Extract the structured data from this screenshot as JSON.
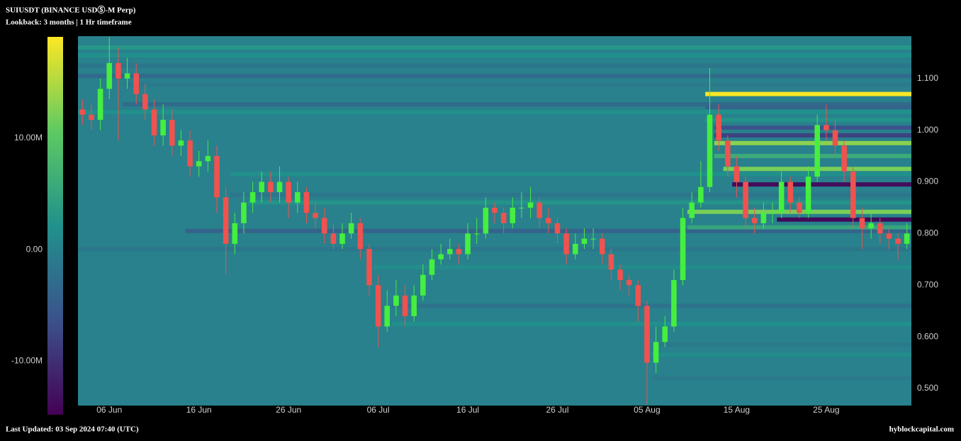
{
  "chart_data": {
    "type": "candlestick-heatmap",
    "title": "SUIUSDT (BINANCE USDⓈ-M Perp)",
    "subtitle": "Lookback: 3 months | 1 Hr timeframe",
    "footer": "Last Updated: 03 Sep 2024 07:40 (UTC)",
    "source": "hyblockcapital.com",
    "x": [
      "03 Jun",
      "04 Jun",
      "05 Jun",
      "06 Jun",
      "07 Jun",
      "08 Jun",
      "09 Jun",
      "10 Jun",
      "11 Jun",
      "12 Jun",
      "13 Jun",
      "14 Jun",
      "15 Jun",
      "16 Jun",
      "17 Jun",
      "18 Jun",
      "19 Jun",
      "20 Jun",
      "21 Jun",
      "22 Jun",
      "23 Jun",
      "24 Jun",
      "25 Jun",
      "26 Jun",
      "27 Jun",
      "28 Jun",
      "29 Jun",
      "30 Jun",
      "01 Jul",
      "02 Jul",
      "03 Jul",
      "04 Jul",
      "05 Jul",
      "06 Jul",
      "07 Jul",
      "08 Jul",
      "09 Jul",
      "10 Jul",
      "11 Jul",
      "12 Jul",
      "13 Jul",
      "14 Jul",
      "15 Jul",
      "16 Jul",
      "17 Jul",
      "18 Jul",
      "19 Jul",
      "20 Jul",
      "21 Jul",
      "22 Jul",
      "23 Jul",
      "24 Jul",
      "25 Jul",
      "26 Jul",
      "27 Jul",
      "28 Jul",
      "29 Jul",
      "30 Jul",
      "31 Jul",
      "01 Aug",
      "02 Aug",
      "03 Aug",
      "04 Aug",
      "05 Aug",
      "06 Aug",
      "07 Aug",
      "08 Aug",
      "09 Aug",
      "10 Aug",
      "11 Aug",
      "12 Aug",
      "13 Aug",
      "14 Aug",
      "15 Aug",
      "16 Aug",
      "17 Aug",
      "18 Aug",
      "19 Aug",
      "20 Aug",
      "21 Aug",
      "22 Aug",
      "23 Aug",
      "24 Aug",
      "25 Aug",
      "26 Aug",
      "27 Aug",
      "28 Aug",
      "29 Aug",
      "30 Aug",
      "31 Aug",
      "01 Sep",
      "02 Sep",
      "03 Sep"
    ],
    "open": [
      1.04,
      1.03,
      1.02,
      1.08,
      1.13,
      1.1,
      1.11,
      1.07,
      1.04,
      0.99,
      1.02,
      0.97,
      0.98,
      0.93,
      0.94,
      0.95,
      0.87,
      0.78,
      0.82,
      0.86,
      0.88,
      0.9,
      0.88,
      0.9,
      0.86,
      0.88,
      0.84,
      0.83,
      0.8,
      0.78,
      0.8,
      0.82,
      0.77,
      0.7,
      0.62,
      0.66,
      0.68,
      0.64,
      0.68,
      0.72,
      0.75,
      0.76,
      0.77,
      0.76,
      0.8,
      0.8,
      0.85,
      0.84,
      0.82,
      0.85,
      0.85,
      0.86,
      0.83,
      0.82,
      0.8,
      0.76,
      0.78,
      0.79,
      0.79,
      0.76,
      0.73,
      0.71,
      0.7,
      0.66,
      0.55,
      0.59,
      0.62,
      0.71,
      0.83,
      0.86,
      0.89,
      1.03,
      0.98,
      0.93,
      0.9,
      0.83,
      0.82,
      0.84,
      0.84,
      0.9,
      0.86,
      0.84,
      0.91,
      1.01,
      1.0,
      0.97,
      0.92,
      0.83,
      0.81,
      0.82,
      0.8,
      0.79,
      0.78
    ],
    "high": [
      1.06,
      1.05,
      1.1,
      1.18,
      1.16,
      1.14,
      1.13,
      1.09,
      1.06,
      1.05,
      1.04,
      1.0,
      1.0,
      0.96,
      0.98,
      0.97,
      0.89,
      0.84,
      0.88,
      0.9,
      0.92,
      0.92,
      0.93,
      0.91,
      0.9,
      0.89,
      0.86,
      0.85,
      0.82,
      0.82,
      0.84,
      0.83,
      0.78,
      0.72,
      0.69,
      0.71,
      0.7,
      0.7,
      0.74,
      0.77,
      0.78,
      0.79,
      0.78,
      0.82,
      0.83,
      0.87,
      0.86,
      0.85,
      0.87,
      0.88,
      0.89,
      0.87,
      0.85,
      0.83,
      0.81,
      0.8,
      0.81,
      0.81,
      0.8,
      0.77,
      0.74,
      0.72,
      0.71,
      0.67,
      0.62,
      0.64,
      0.73,
      0.85,
      0.88,
      0.94,
      1.12,
      1.05,
      0.99,
      0.95,
      0.91,
      0.85,
      0.86,
      0.86,
      0.92,
      0.91,
      0.87,
      0.93,
      1.03,
      1.05,
      1.02,
      0.98,
      0.93,
      0.85,
      0.84,
      0.83,
      0.81,
      0.8,
      0.82
    ],
    "low": [
      1.01,
      1.0,
      1.0,
      1.06,
      0.98,
      1.08,
      1.05,
      1.02,
      0.97,
      0.97,
      0.95,
      0.95,
      0.91,
      0.91,
      0.92,
      0.84,
      0.72,
      0.76,
      0.8,
      0.84,
      0.86,
      0.86,
      0.86,
      0.83,
      0.84,
      0.82,
      0.81,
      0.78,
      0.77,
      0.77,
      0.79,
      0.75,
      0.68,
      0.58,
      0.61,
      0.64,
      0.62,
      0.63,
      0.67,
      0.71,
      0.74,
      0.75,
      0.74,
      0.75,
      0.78,
      0.79,
      0.82,
      0.8,
      0.81,
      0.83,
      0.83,
      0.81,
      0.8,
      0.78,
      0.74,
      0.75,
      0.77,
      0.77,
      0.74,
      0.71,
      0.69,
      0.68,
      0.63,
      0.47,
      0.53,
      0.58,
      0.61,
      0.7,
      0.82,
      0.85,
      0.88,
      0.96,
      0.91,
      0.87,
      0.81,
      0.8,
      0.81,
      0.82,
      0.83,
      0.84,
      0.83,
      0.83,
      0.9,
      0.98,
      0.95,
      0.9,
      0.81,
      0.77,
      0.79,
      0.78,
      0.77,
      0.75,
      0.77
    ],
    "close": [
      1.03,
      1.02,
      1.08,
      1.13,
      1.1,
      1.11,
      1.07,
      1.04,
      0.99,
      1.02,
      0.97,
      0.98,
      0.93,
      0.94,
      0.95,
      0.87,
      0.78,
      0.82,
      0.86,
      0.88,
      0.9,
      0.88,
      0.9,
      0.86,
      0.88,
      0.84,
      0.83,
      0.8,
      0.78,
      0.8,
      0.82,
      0.77,
      0.7,
      0.62,
      0.66,
      0.68,
      0.64,
      0.68,
      0.72,
      0.75,
      0.76,
      0.77,
      0.76,
      0.8,
      0.8,
      0.85,
      0.84,
      0.82,
      0.85,
      0.85,
      0.86,
      0.83,
      0.82,
      0.8,
      0.76,
      0.78,
      0.79,
      0.79,
      0.76,
      0.73,
      0.71,
      0.7,
      0.66,
      0.55,
      0.59,
      0.62,
      0.71,
      0.83,
      0.86,
      0.89,
      1.03,
      0.98,
      0.93,
      0.9,
      0.83,
      0.82,
      0.84,
      0.84,
      0.9,
      0.86,
      0.84,
      0.91,
      1.01,
      1.0,
      0.97,
      0.92,
      0.83,
      0.81,
      0.82,
      0.8,
      0.79,
      0.78,
      0.8
    ],
    "up_color": "#45ee3f",
    "down_color": "#f0524f",
    "heatmap": {
      "prices": [
        1.16,
        1.145,
        1.125,
        1.105,
        1.088,
        1.05,
        1.035,
        0.915,
        0.875,
        0.86,
        0.805,
        0.77,
        0.735,
        0.66,
        0.625,
        0.585,
        0.565,
        0.52,
        1.07,
        1.045,
        1.02,
        1.005,
        0.99,
        0.975,
        0.95,
        0.925,
        0.895,
        0.842,
        0.827,
        0.812
      ],
      "starts": [
        "03 Jun",
        "03 Jun",
        "03 Jun",
        "03 Jun",
        "08 Jun",
        "08 Jun",
        "03 Jun",
        "20 Jun",
        "20 Jun",
        "22 Jun",
        "15 Jun",
        "03 Jun",
        "06 Jul",
        "08 Jul",
        "08 Jul",
        "06 Aug",
        "06 Aug",
        "06 Aug",
        "12 Aug",
        "12 Aug",
        "12 Aug",
        "13 Aug",
        "13 Aug",
        "13 Aug",
        "13 Aug",
        "14 Aug",
        "15 Aug",
        "10 Aug",
        "20 Aug",
        "10 Aug"
      ],
      "values": [
        3000000,
        2000000,
        -1500000,
        -3000000,
        -1000000,
        -3000000,
        2000000,
        2000000,
        -1500000,
        2500000,
        -4000000,
        -1500000,
        1500000,
        -2000000,
        2000000,
        -1000000,
        1500000,
        -1000000,
        19000000,
        -4000000,
        2500000,
        -6000000,
        -8000000,
        13000000,
        6000000,
        12000000,
        -13500000,
        12000000,
        -14000000,
        5000000
      ]
    },
    "zlim": [
      -14800000,
      19100000
    ],
    "zticks": [
      {
        "value": 10000000,
        "label": "10.00M"
      },
      {
        "value": 0,
        "label": "0.00"
      },
      {
        "value": -10000000,
        "label": "-10.00M"
      }
    ],
    "ylim": [
      0.467,
      1.182
    ],
    "yticks": [
      {
        "value": 0.5,
        "label": "0.500"
      },
      {
        "value": 0.6,
        "label": "0.600"
      },
      {
        "value": 0.7,
        "label": "0.700"
      },
      {
        "value": 0.8,
        "label": "0.800"
      },
      {
        "value": 0.9,
        "label": "0.900"
      },
      {
        "value": 1.0,
        "label": "1.000"
      },
      {
        "value": 1.1,
        "label": "1.100"
      }
    ],
    "xlim": [
      "03 Jun",
      "03 Sep"
    ],
    "xticks": [
      "06 Jun",
      "16 Jun",
      "26 Jun",
      "06 Jul",
      "16 Jul",
      "26 Jul",
      "05 Aug",
      "15 Aug",
      "25 Aug"
    ]
  }
}
